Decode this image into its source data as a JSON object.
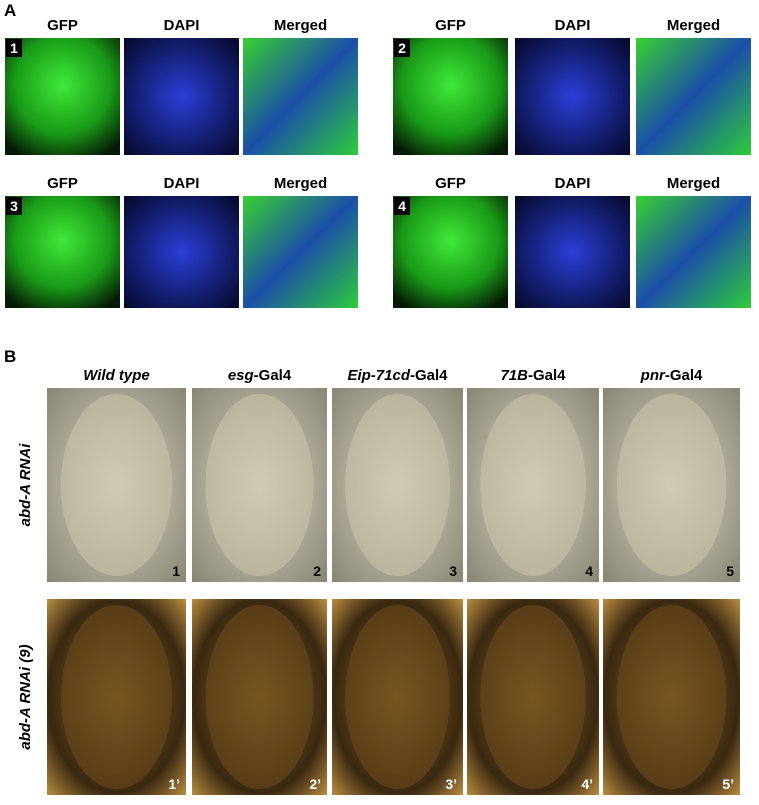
{
  "panel_a": {
    "label": "A",
    "groups": [
      {
        "number": "1",
        "channels": [
          "GFP",
          "DAPI",
          "Merged"
        ]
      },
      {
        "number": "2",
        "channels": [
          "GFP",
          "DAPI",
          "Merged"
        ]
      },
      {
        "number": "3",
        "channels": [
          "GFP",
          "DAPI",
          "Merged"
        ]
      },
      {
        "number": "4",
        "channels": [
          "GFP",
          "DAPI",
          "Merged"
        ]
      }
    ]
  },
  "panel_b": {
    "label": "B",
    "columns": [
      {
        "italic": "Wild type"
      },
      {
        "italic": "esg",
        "plain": "-Gal4"
      },
      {
        "italic": "Eip-71cd",
        "plain": "-Gal4"
      },
      {
        "italic": "71B",
        "plain": "-Gal4"
      },
      {
        "italic": "pnr",
        "plain": "-Gal4"
      }
    ],
    "rows": [
      {
        "label": "abd-A RNAi",
        "numbers": [
          "1",
          "2",
          "3",
          "4",
          "5"
        ]
      },
      {
        "label": "abd-A RNAi (9)",
        "numbers": [
          "1’",
          "2’",
          "3’",
          "4’",
          "5’"
        ]
      }
    ]
  }
}
